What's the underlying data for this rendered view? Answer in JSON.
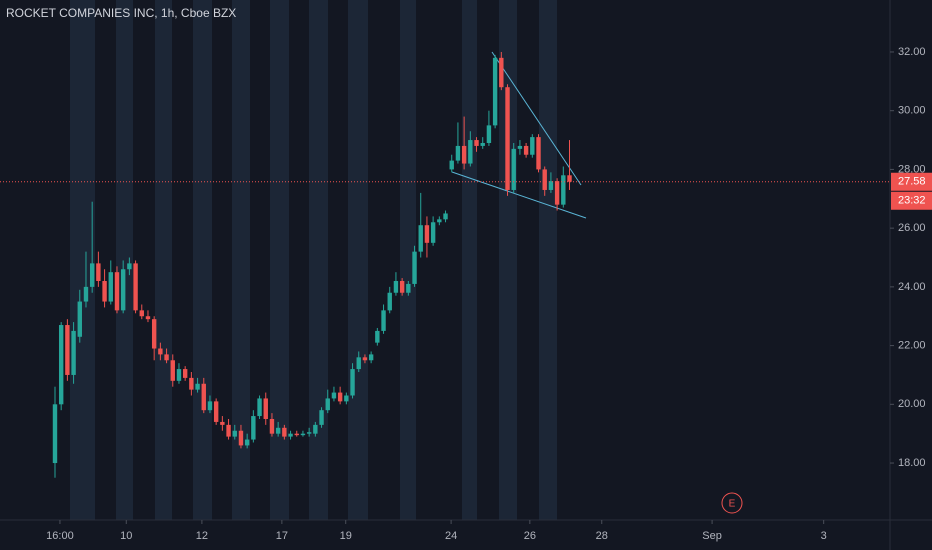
{
  "chart_data": {
    "type": "candlestick",
    "title": "ROCKET COMPANIES INC, 1h, Cboe BZX",
    "open": [
      18,
      20,
      22.7,
      21,
      22.3,
      23.5,
      24,
      24.8,
      24.2,
      23.5,
      24.5,
      23.2,
      24.6,
      24.8,
      23.2,
      23,
      22.9,
      21.9,
      21.7,
      21.5,
      20.8,
      21.2,
      20.9,
      20.5,
      20.7,
      19.8,
      20.1,
      19.4,
      19.3,
      18.9,
      19.1,
      18.6,
      18.8,
      19.6,
      20.2,
      19.5,
      19,
      19.2,
      18.9,
      19,
      18.95,
      19,
      19,
      19.3,
      19.8,
      20.2,
      20.4,
      20.1,
      20.3,
      21.2,
      21.6,
      21.5,
      22.1,
      22.5,
      23.2,
      23.8,
      24.2,
      23.8,
      24.1,
      25.2,
      26.1,
      25.5,
      26.2,
      26.3,
      28,
      28.3,
      28.8,
      28.2,
      29,
      28.8,
      28.9,
      29.5,
      31.8,
      30.8,
      27.3,
      28.7,
      28.8,
      28.5,
      29.1,
      28,
      27.3,
      27.6,
      26.8,
      27.8
    ],
    "high": [
      20.6,
      22.8,
      22.9,
      22.8,
      23.9,
      25.2,
      26.9,
      25.2,
      24.6,
      24.9,
      24.7,
      24.9,
      25,
      24.9,
      23.4,
      23.2,
      23,
      22.1,
      21.9,
      21.7,
      21.4,
      21.3,
      21.1,
      20.9,
      20.9,
      20.3,
      20.2,
      19.6,
      19.5,
      19.3,
      19.3,
      19,
      19.8,
      20.3,
      20.4,
      19.7,
      19.4,
      19.3,
      19.1,
      19.1,
      19.1,
      19.2,
      19.4,
      19.9,
      20.5,
      20.6,
      20.6,
      20.4,
      21.4,
      21.8,
      21.7,
      21.8,
      22.6,
      23.4,
      24,
      24.5,
      24.3,
      24.2,
      25.4,
      27.2,
      26.4,
      26.4,
      26.4,
      26.6,
      28.5,
      29.6,
      29.8,
      29.3,
      29.1,
      29.1,
      30,
      31.9,
      32,
      30.9,
      28.9,
      29,
      28.9,
      29.2,
      29.2,
      28.1,
      27.9,
      27.7,
      28.1,
      29
    ],
    "low": [
      17.5,
      19.8,
      20.8,
      20.7,
      22.1,
      23.3,
      23.8,
      24,
      23.3,
      23.4,
      23.1,
      23.1,
      24.4,
      23.1,
      22.9,
      22.8,
      21.5,
      21.5,
      21.4,
      20.6,
      20.7,
      20.8,
      20.3,
      20.4,
      19.7,
      19.7,
      19.3,
      19.1,
      18.8,
      18.8,
      18.5,
      18.5,
      18.7,
      19.5,
      19.3,
      18.9,
      18.9,
      18.8,
      18.8,
      18.9,
      18.9,
      18.9,
      18.9,
      19.2,
      19.7,
      20.1,
      20,
      20,
      20.2,
      21.1,
      21.4,
      21.4,
      22,
      22.4,
      23.1,
      23.7,
      23.7,
      23.7,
      24,
      25,
      25,
      25.4,
      26.1,
      26.2,
      27.9,
      28.2,
      28,
      28.1,
      28.6,
      28.7,
      28.8,
      29.4,
      30.7,
      27.1,
      27.2,
      28.5,
      28.4,
      28.4,
      27.9,
      27.1,
      27.2,
      26.6,
      26.7,
      27.3
    ],
    "close": [
      20,
      22.7,
      21,
      22.5,
      23.5,
      24,
      24.8,
      24.2,
      23.5,
      24.5,
      23.2,
      24.6,
      24.8,
      23.2,
      23,
      22.9,
      21.9,
      21.7,
      21.5,
      20.8,
      21.2,
      20.9,
      20.5,
      20.7,
      19.8,
      20.1,
      19.4,
      19.3,
      18.9,
      19.1,
      18.6,
      18.8,
      19.6,
      20.2,
      19.5,
      19,
      19.2,
      18.9,
      19,
      18.95,
      19,
      19.05,
      19.3,
      19.8,
      20.2,
      20.4,
      20.1,
      20.3,
      21.2,
      21.6,
      21.5,
      21.7,
      22.5,
      23.2,
      23.8,
      24.2,
      23.8,
      24.1,
      25.2,
      26.1,
      25.5,
      26.2,
      26.3,
      26.5,
      28.3,
      28.8,
      28.2,
      29,
      28.8,
      28.9,
      29.5,
      31.8,
      30.8,
      27.3,
      28.7,
      28.8,
      28.5,
      29.1,
      28,
      27.3,
      27.6,
      26.8,
      27.8,
      27.58
    ],
    "up_color": "#26a69a",
    "down_color": "#ef5350",
    "xlim": [
      -8.87,
      134.7
    ],
    "xticks": [
      {
        "value": 0.8,
        "label": "16:00"
      },
      {
        "value": 11.5,
        "label": "10"
      },
      {
        "value": 23.7,
        "label": "12"
      },
      {
        "value": 36.6,
        "label": "17"
      },
      {
        "value": 46.9,
        "label": "19"
      },
      {
        "value": 63.9,
        "label": "24"
      },
      {
        "value": 76.6,
        "label": "26"
      },
      {
        "value": 88.2,
        "label": "28"
      },
      {
        "value": 106,
        "label": "Sep"
      },
      {
        "value": 124,
        "label": "3"
      }
    ],
    "ylim": [
      16.06,
      33.77
    ],
    "yticks": [
      {
        "value": 18,
        "label": "18.00"
      },
      {
        "value": 20,
        "label": "20.00"
      },
      {
        "value": 22,
        "label": "22.00"
      },
      {
        "value": 24,
        "label": "24.00"
      },
      {
        "value": 26,
        "label": "26.00"
      },
      {
        "value": 28,
        "label": "28.00"
      },
      {
        "value": 30,
        "label": "30.00"
      },
      {
        "value": 32,
        "label": "32.00"
      }
    ],
    "last_price": 27.58,
    "countdown": "23:32",
    "earnings_marker": "E"
  }
}
